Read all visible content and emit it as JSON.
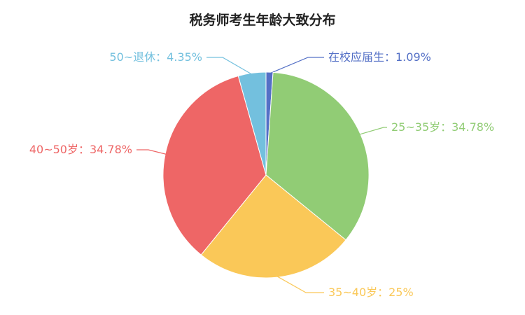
{
  "chart_data": {
    "type": "pie",
    "title": "税务师考生年龄大致分布",
    "slices": [
      {
        "label": "在校应届生：1.09%",
        "value": 1.09,
        "color": "#5470c6"
      },
      {
        "label": "25~35岁：34.78%",
        "value": 34.78,
        "color": "#91cc75"
      },
      {
        "label": "35~40岁：25%",
        "value": 25,
        "color": "#fac858"
      },
      {
        "label": "40~50岁：34.78%",
        "value": 34.78,
        "color": "#ee6666"
      },
      {
        "label": "50~退休：4.35%",
        "value": 4.35,
        "color": "#73c0de"
      }
    ]
  }
}
